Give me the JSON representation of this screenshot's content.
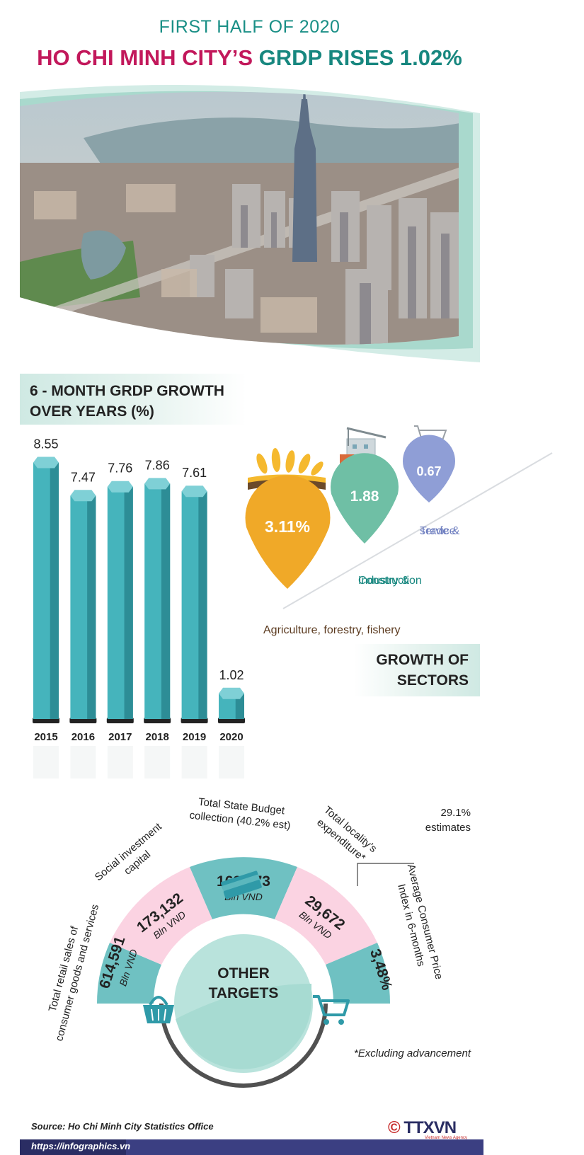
{
  "header": {
    "subtitle": "FIRST HALF OF 2020",
    "title_part1": "HO CHI MINH CITY’S",
    "title_part2": "GRDP RISES 1.02%"
  },
  "grdp_section": {
    "title_line1": "6 - MONTH GRDP GROWTH",
    "title_line2": "OVER YEARS (%)"
  },
  "chart_data": [
    {
      "type": "bar",
      "title": "6 - MONTH GRDP GROWTH OVER YEARS (%)",
      "categories": [
        "2015",
        "2016",
        "2017",
        "2018",
        "2019",
        "2020"
      ],
      "values": [
        8.55,
        7.47,
        7.76,
        7.86,
        7.61,
        1.02
      ],
      "value_labels": [
        "8.55",
        "7.47",
        "7.76",
        "7.86",
        "7.61",
        "1.02"
      ],
      "ylim": [
        0,
        9
      ],
      "grid": false,
      "colors": {
        "bar": "#45b4bc",
        "bar_dark": "#2d8d96",
        "bar_top": "#7fd0d6"
      }
    },
    {
      "type": "table",
      "title": "GROWTH OF SECTORS",
      "sectors": [
        {
          "label": "Agriculture, forestry, fishery",
          "value": "3.11%",
          "color": "#f0a928"
        },
        {
          "label_line1": "Industry &",
          "label_line2": "Construction",
          "value": "1.88",
          "color": "#6fbfa5"
        },
        {
          "label_line1": "Trade &",
          "label_line2": "service",
          "value": "0.67",
          "color": "#8f9ed6"
        }
      ]
    }
  ],
  "sectors_section": {
    "title_line1": "GROWTH OF",
    "title_line2": "SECTORS"
  },
  "targets": {
    "center_line1": "OTHER",
    "center_line2": "TARGETS",
    "items": [
      {
        "label_line1": "Total retail sales of",
        "label_line2": "consumer goods and services",
        "value": "614,591",
        "unit": "Bln VND",
        "color": "#6fc1c2"
      },
      {
        "label_line1": "Social investment",
        "label_line2": "capital",
        "value": "173,132",
        "unit": "Bln VND",
        "color": "#fbd3e2"
      },
      {
        "label_line1": "Total State Budget",
        "label_line2": "collection (40.2% est)",
        "value": "163,173",
        "unit": "Bln VND",
        "color": "#6fc1c2"
      },
      {
        "label_line1": "Total locality's",
        "label_line2": "expenditure*",
        "value": "29,672",
        "unit": "Bln VND",
        "color": "#fbd3e2"
      },
      {
        "label_line1": "Average Consumer Price",
        "label_line2": "Index  in 6-months",
        "value": "3,48%",
        "unit": "",
        "color": "#6fc1c2"
      }
    ],
    "estimate_note_line1": "29.1%",
    "estimate_note_line2": "estimates",
    "footnote": "*Excluding advancement"
  },
  "footer": {
    "source": "Source: Ho Chi Minh City Statistics Office",
    "url": "https://infographics.vn",
    "logo_symbol": "©",
    "logo_text": "TTXVN",
    "logo_sub": "Vietnam News Agency"
  },
  "icons": {
    "hero": "city-skyline-icon",
    "agriculture": "wheat-icon",
    "industry": "building-crane-icon",
    "trade": "shopping-cart-icon",
    "retail": "basket-icon",
    "budget": "money-stack-icon",
    "cpi": "shopping-cart-icon"
  }
}
